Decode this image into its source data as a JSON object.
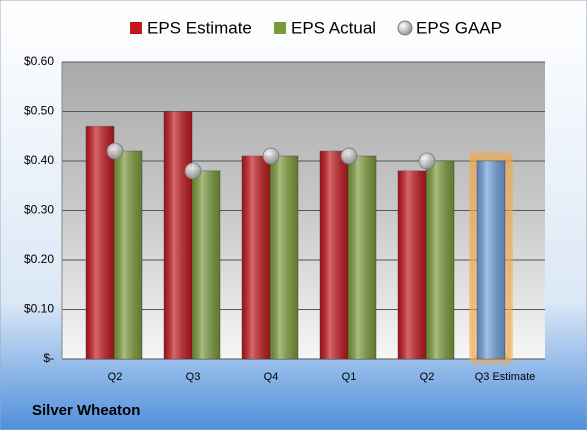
{
  "chart_data": {
    "type": "bar",
    "title": "Silver Wheaton",
    "categories": [
      "Q2",
      "Q3",
      "Q4",
      "Q1",
      "Q2",
      "Q3 Estimate"
    ],
    "series": [
      {
        "name": "EPS Estimate",
        "color": "#c0181d",
        "values": [
          0.47,
          0.5,
          0.41,
          0.42,
          0.38,
          0.4
        ]
      },
      {
        "name": "EPS Actual",
        "color": "#7a9a3a",
        "values": [
          0.42,
          0.38,
          0.41,
          0.41,
          0.4,
          null
        ]
      },
      {
        "name": "EPS GAAP",
        "color": "#a9adb3",
        "marker": "circle",
        "values": [
          0.42,
          0.38,
          0.41,
          0.41,
          0.4,
          null
        ]
      }
    ],
    "highlight": {
      "index": 5,
      "color": "#6f9fdc",
      "glow": "#f3a640"
    },
    "ylim": [
      0,
      0.6
    ],
    "yticks": [
      {
        "value": 0,
        "label": "$-"
      },
      {
        "value": 0.1,
        "label": "$0.10"
      },
      {
        "value": 0.2,
        "label": "$0.20"
      },
      {
        "value": 0.3,
        "label": "$0.30"
      },
      {
        "value": 0.4,
        "label": "$0.40"
      },
      {
        "value": 0.5,
        "label": "$0.50"
      },
      {
        "value": 0.6,
        "label": "$0.60"
      }
    ],
    "grid": true
  }
}
